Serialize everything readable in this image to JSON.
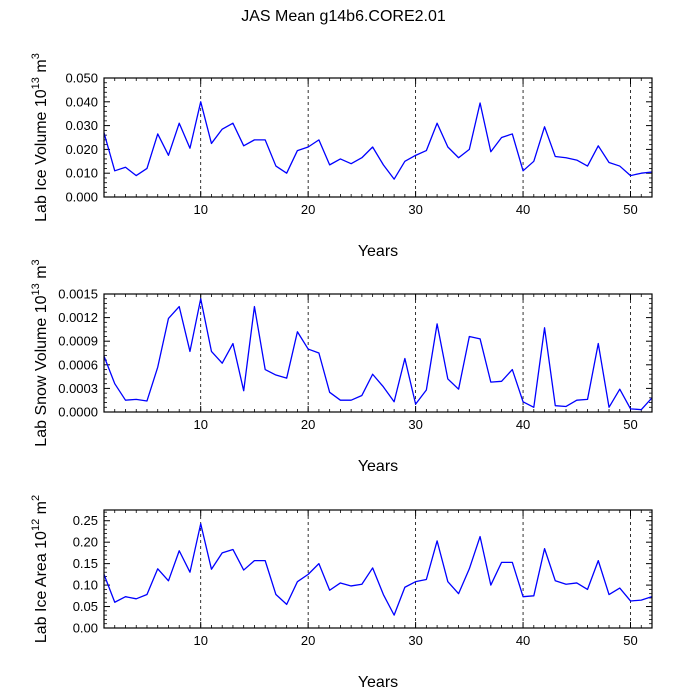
{
  "title": "JAS Mean g14b6.CORE2.01",
  "chart_data": [
    {
      "type": "line",
      "title": "",
      "xlabel": "Years",
      "ylabel_base": "Lab Ice Volume 10",
      "ylabel_exp": "13",
      "ylabel_unit": "m",
      "ylabel_unit_exp": "3",
      "xlim": [
        1,
        52
      ],
      "ylim": [
        0,
        0.05
      ],
      "yticks": [
        0,
        0.01,
        0.02,
        0.03,
        0.04,
        0.05
      ],
      "ytick_labels": [
        "0.000",
        "0.010",
        "0.020",
        "0.030",
        "0.040",
        "0.050"
      ],
      "xticks": [
        10,
        20,
        30,
        40,
        50
      ],
      "xtick_labels": [
        "10",
        "20",
        "30",
        "40",
        "50"
      ],
      "color": "#0000ff",
      "x": [
        1,
        2,
        3,
        4,
        5,
        6,
        7,
        8,
        9,
        10,
        11,
        12,
        13,
        14,
        15,
        16,
        17,
        18,
        19,
        20,
        21,
        22,
        23,
        24,
        25,
        26,
        27,
        28,
        29,
        30,
        31,
        32,
        33,
        34,
        35,
        36,
        37,
        38,
        39,
        40,
        41,
        42,
        43,
        44,
        45,
        46,
        47,
        48,
        49,
        50,
        51,
        52
      ],
      "values": [
        0.027,
        0.011,
        0.0125,
        0.009,
        0.012,
        0.0265,
        0.0175,
        0.031,
        0.0205,
        0.04,
        0.0225,
        0.0285,
        0.031,
        0.0215,
        0.024,
        0.024,
        0.013,
        0.01,
        0.0195,
        0.021,
        0.024,
        0.0135,
        0.016,
        0.014,
        0.0165,
        0.021,
        0.0135,
        0.0075,
        0.015,
        0.0175,
        0.0195,
        0.031,
        0.021,
        0.0165,
        0.02,
        0.0395,
        0.019,
        0.025,
        0.0265,
        0.011,
        0.015,
        0.0295,
        0.017,
        0.0165,
        0.0155,
        0.013,
        0.0215,
        0.0145,
        0.013,
        0.009,
        0.01,
        0.0105
      ]
    },
    {
      "type": "line",
      "title": "",
      "xlabel": "Years",
      "ylabel_base": "Lab Snow Volume 10",
      "ylabel_exp": "13",
      "ylabel_unit": "m",
      "ylabel_unit_exp": "3",
      "xlim": [
        1,
        52
      ],
      "ylim": [
        0,
        0.0015
      ],
      "yticks": [
        0,
        0.0003,
        0.0006,
        0.0009,
        0.0012,
        0.0015
      ],
      "ytick_labels": [
        "0.0000",
        "0.0003",
        "0.0006",
        "0.0009",
        "0.0012",
        "0.0015"
      ],
      "xticks": [
        10,
        20,
        30,
        40,
        50
      ],
      "xtick_labels": [
        "10",
        "20",
        "30",
        "40",
        "50"
      ],
      "color": "#0000ff",
      "x": [
        1,
        2,
        3,
        4,
        5,
        6,
        7,
        8,
        9,
        10,
        11,
        12,
        13,
        14,
        15,
        16,
        17,
        18,
        19,
        20,
        21,
        22,
        23,
        24,
        25,
        26,
        27,
        28,
        29,
        30,
        31,
        32,
        33,
        34,
        35,
        36,
        37,
        38,
        39,
        40,
        41,
        42,
        43,
        44,
        45,
        46,
        47,
        48,
        49,
        50,
        51,
        52
      ],
      "values": [
        0.00071,
        0.00036,
        0.00015,
        0.00016,
        0.00014,
        0.00057,
        0.00119,
        0.00134,
        0.00077,
        0.00144,
        0.00077,
        0.00062,
        0.00087,
        0.00027,
        0.00134,
        0.00054,
        0.00047,
        0.00043,
        0.00102,
        0.0008,
        0.00075,
        0.00025,
        0.00015,
        0.00015,
        0.00021,
        0.00048,
        0.00032,
        0.00013,
        0.00068,
        0.0001,
        0.00028,
        0.00112,
        0.00042,
        0.00029,
        0.00096,
        0.00093,
        0.00038,
        0.00039,
        0.00054,
        0.00013,
        6e-05,
        0.00107,
        8e-05,
        7e-05,
        0.00015,
        0.00016,
        0.00087,
        6e-05,
        0.00029,
        4e-05,
        3e-05,
        0.00018
      ]
    },
    {
      "type": "line",
      "title": "",
      "xlabel": "Years",
      "ylabel_base": "Lab Ice Area 10",
      "ylabel_exp": "12",
      "ylabel_unit": "m",
      "ylabel_unit_exp": "2",
      "xlim": [
        1,
        52
      ],
      "ylim": [
        0,
        0.275
      ],
      "yticks": [
        0,
        0.05,
        0.1,
        0.15,
        0.2,
        0.25
      ],
      "ytick_labels": [
        "0.00",
        "0.05",
        "0.10",
        "0.15",
        "0.20",
        "0.25"
      ],
      "xticks": [
        10,
        20,
        30,
        40,
        50
      ],
      "xtick_labels": [
        "10",
        "20",
        "30",
        "40",
        "50"
      ],
      "color": "#0000ff",
      "x": [
        1,
        2,
        3,
        4,
        5,
        6,
        7,
        8,
        9,
        10,
        11,
        12,
        13,
        14,
        15,
        16,
        17,
        18,
        19,
        20,
        21,
        22,
        23,
        24,
        25,
        26,
        27,
        28,
        29,
        30,
        31,
        32,
        33,
        34,
        35,
        36,
        37,
        38,
        39,
        40,
        41,
        42,
        43,
        44,
        45,
        46,
        47,
        48,
        49,
        50,
        51,
        52
      ],
      "values": [
        0.125,
        0.06,
        0.073,
        0.068,
        0.078,
        0.138,
        0.11,
        0.18,
        0.13,
        0.243,
        0.137,
        0.175,
        0.183,
        0.135,
        0.157,
        0.157,
        0.078,
        0.055,
        0.108,
        0.125,
        0.15,
        0.088,
        0.105,
        0.098,
        0.102,
        0.14,
        0.078,
        0.03,
        0.095,
        0.108,
        0.113,
        0.203,
        0.108,
        0.08,
        0.138,
        0.213,
        0.1,
        0.153,
        0.153,
        0.073,
        0.075,
        0.185,
        0.11,
        0.102,
        0.105,
        0.09,
        0.157,
        0.078,
        0.093,
        0.063,
        0.065,
        0.073
      ]
    }
  ]
}
